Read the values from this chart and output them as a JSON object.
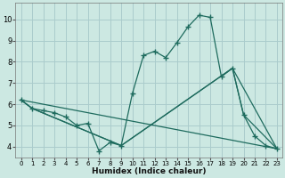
{
  "xlabel": "Humidex (Indice chaleur)",
  "background_color": "#cce8e2",
  "grid_color": "#aacccc",
  "line_color": "#1e6b5e",
  "xlim": [
    -0.5,
    23.5
  ],
  "ylim": [
    3.5,
    10.8
  ],
  "yticks": [
    4,
    5,
    6,
    7,
    8,
    9,
    10
  ],
  "xticks": [
    0,
    1,
    2,
    3,
    4,
    5,
    6,
    7,
    8,
    9,
    10,
    11,
    12,
    13,
    14,
    15,
    16,
    17,
    18,
    19,
    20,
    21,
    22,
    23
  ],
  "series1_x": [
    0,
    1,
    2,
    3,
    4,
    5,
    6,
    7,
    8,
    9,
    10,
    11,
    12,
    13,
    14,
    15,
    16,
    17,
    18,
    19,
    20,
    21,
    22,
    23
  ],
  "series1_y": [
    6.2,
    5.8,
    5.7,
    5.6,
    5.4,
    5.0,
    5.1,
    3.8,
    4.2,
    4.05,
    6.5,
    8.3,
    8.5,
    8.2,
    8.9,
    9.65,
    10.2,
    10.1,
    7.3,
    7.7,
    5.5,
    4.5,
    4.05,
    3.9
  ],
  "series2_x": [
    0,
    1,
    9,
    19,
    23
  ],
  "series2_y": [
    6.2,
    5.8,
    4.05,
    7.7,
    3.9
  ],
  "series3_x": [
    0,
    1,
    9,
    19,
    20,
    23
  ],
  "series3_y": [
    6.2,
    5.8,
    4.05,
    7.7,
    5.5,
    3.9
  ],
  "series4_x": [
    0,
    23
  ],
  "series4_y": [
    6.2,
    3.9
  ]
}
